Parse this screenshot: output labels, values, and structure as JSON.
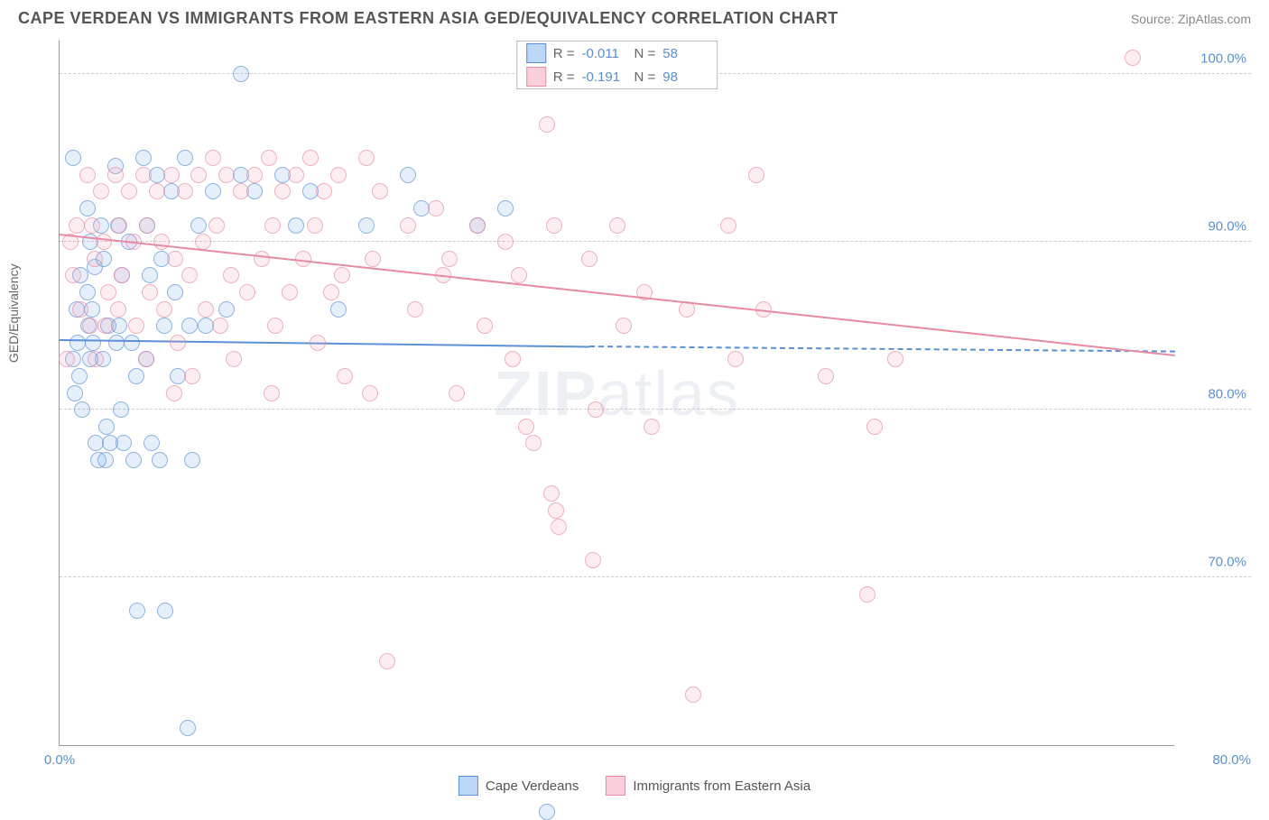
{
  "header": {
    "title": "CAPE VERDEAN VS IMMIGRANTS FROM EASTERN ASIA GED/EQUIVALENCY CORRELATION CHART",
    "source": "Source: ZipAtlas.com"
  },
  "watermark": {
    "bold": "ZIP",
    "rest": "atlas"
  },
  "chart": {
    "type": "scatter",
    "y_axis_label": "GED/Equivalency",
    "xlim": [
      0,
      80
    ],
    "ylim": [
      60,
      102
    ],
    "y_ticks": [
      {
        "v": 70,
        "label": "70.0%"
      },
      {
        "v": 80,
        "label": "80.0%"
      },
      {
        "v": 90,
        "label": "90.0%"
      },
      {
        "v": 100,
        "label": "100.0%"
      }
    ],
    "x_ticks": [
      {
        "v": 0,
        "label": "0.0%"
      },
      {
        "v": 80,
        "label": "80.0%"
      }
    ],
    "grid_color": "#cccccc",
    "axis_color": "#999999",
    "background_color": "#ffffff",
    "label_color": "#666666",
    "tick_label_color": "#5b8fd6",
    "marker_radius": 9,
    "marker_border_width": 1.2,
    "marker_fill_opacity": 0.28,
    "series": [
      {
        "name": "Cape Verdeans",
        "color": "#6fa8e8",
        "border_color": "#5b8fd6",
        "stats": {
          "R": "-0.011",
          "N": "58"
        },
        "trend": {
          "x1": 0,
          "y1": 84.2,
          "x2": 38,
          "y2": 83.8,
          "dash_to_x": 80,
          "dash_to_y": 83.5
        },
        "points": [
          [
            1,
            95
          ],
          [
            1.5,
            88
          ],
          [
            1.2,
            86
          ],
          [
            1.3,
            84
          ],
          [
            1,
            83
          ],
          [
            1.4,
            82
          ],
          [
            1.1,
            81
          ],
          [
            1.6,
            80
          ],
          [
            2,
            92
          ],
          [
            2.2,
            90
          ],
          [
            2.5,
            88.5
          ],
          [
            2,
            87
          ],
          [
            2.3,
            86
          ],
          [
            2.1,
            85
          ],
          [
            2.4,
            84
          ],
          [
            2.2,
            83
          ],
          [
            2.6,
            78
          ],
          [
            2.8,
            77
          ],
          [
            3,
            91
          ],
          [
            3.2,
            89
          ],
          [
            3.5,
            85
          ],
          [
            3.1,
            83
          ],
          [
            3.4,
            79
          ],
          [
            3.3,
            77
          ],
          [
            3.6,
            78
          ],
          [
            4,
            94.5
          ],
          [
            4.2,
            91
          ],
          [
            4.5,
            88
          ],
          [
            4.3,
            85
          ],
          [
            4.1,
            84
          ],
          [
            4.4,
            80
          ],
          [
            4.6,
            78
          ],
          [
            5,
            90
          ],
          [
            5.2,
            84
          ],
          [
            5.5,
            82
          ],
          [
            5.3,
            77
          ],
          [
            5.6,
            68
          ],
          [
            6,
            95
          ],
          [
            6.3,
            91
          ],
          [
            6.5,
            88
          ],
          [
            6.2,
            83
          ],
          [
            6.6,
            78
          ],
          [
            7,
            94
          ],
          [
            7.3,
            89
          ],
          [
            7.5,
            85
          ],
          [
            7.2,
            77
          ],
          [
            7.6,
            68
          ],
          [
            8,
            93
          ],
          [
            8.3,
            87
          ],
          [
            8.5,
            82
          ],
          [
            9,
            95
          ],
          [
            9.3,
            85
          ],
          [
            9.5,
            77
          ],
          [
            9.2,
            61
          ],
          [
            10,
            91
          ],
          [
            10.5,
            85
          ],
          [
            11,
            93
          ],
          [
            12,
            86
          ],
          [
            13,
            100
          ],
          [
            13,
            94
          ],
          [
            14,
            93
          ],
          [
            16,
            94
          ],
          [
            17,
            91
          ],
          [
            18,
            93
          ],
          [
            20,
            86
          ],
          [
            22,
            91
          ],
          [
            25,
            94
          ],
          [
            26,
            92
          ],
          [
            30,
            91
          ],
          [
            32,
            92
          ],
          [
            35,
            56
          ]
        ]
      },
      {
        "name": "Immigrants from Eastern Asia",
        "color": "#f5a3b8",
        "border_color": "#e88ba3",
        "stats": {
          "R": "-0.191",
          "N": "98"
        },
        "trend": {
          "x1": 0,
          "y1": 90.5,
          "x2": 80,
          "y2": 83.3
        },
        "points": [
          [
            0.5,
            83
          ],
          [
            0.8,
            90
          ],
          [
            1,
            88
          ],
          [
            1.2,
            91
          ],
          [
            1.5,
            86
          ],
          [
            2,
            94
          ],
          [
            2.3,
            91
          ],
          [
            2.5,
            89
          ],
          [
            2.2,
            85
          ],
          [
            2.6,
            83
          ],
          [
            3,
            93
          ],
          [
            3.2,
            90
          ],
          [
            3.5,
            87
          ],
          [
            3.3,
            85
          ],
          [
            4,
            94
          ],
          [
            4.3,
            91
          ],
          [
            4.5,
            88
          ],
          [
            4.2,
            86
          ],
          [
            5,
            93
          ],
          [
            5.3,
            90
          ],
          [
            5.5,
            85
          ],
          [
            6,
            94
          ],
          [
            6.3,
            91
          ],
          [
            6.5,
            87
          ],
          [
            6.2,
            83
          ],
          [
            7,
            93
          ],
          [
            7.3,
            90
          ],
          [
            7.5,
            86
          ],
          [
            8,
            94
          ],
          [
            8.3,
            89
          ],
          [
            8.5,
            84
          ],
          [
            8.2,
            81
          ],
          [
            9,
            93
          ],
          [
            9.3,
            88
          ],
          [
            9.5,
            82
          ],
          [
            10,
            94
          ],
          [
            10.3,
            90
          ],
          [
            10.5,
            86
          ],
          [
            11,
            95
          ],
          [
            11.3,
            91
          ],
          [
            11.5,
            85
          ],
          [
            12,
            94
          ],
          [
            12.3,
            88
          ],
          [
            12.5,
            83
          ],
          [
            13,
            93
          ],
          [
            13.5,
            87
          ],
          [
            14,
            94
          ],
          [
            14.5,
            89
          ],
          [
            15,
            95
          ],
          [
            15.3,
            91
          ],
          [
            15.5,
            85
          ],
          [
            15.2,
            81
          ],
          [
            16,
            93
          ],
          [
            16.5,
            87
          ],
          [
            17,
            94
          ],
          [
            17.5,
            89
          ],
          [
            18,
            95
          ],
          [
            18.3,
            91
          ],
          [
            18.5,
            84
          ],
          [
            19,
            93
          ],
          [
            19.5,
            87
          ],
          [
            20,
            94
          ],
          [
            20.3,
            88
          ],
          [
            20.5,
            82
          ],
          [
            22,
            95
          ],
          [
            22.5,
            89
          ],
          [
            22.3,
            81
          ],
          [
            23,
            93
          ],
          [
            23.5,
            65
          ],
          [
            25,
            91
          ],
          [
            25.5,
            86
          ],
          [
            27,
            92
          ],
          [
            27.5,
            88
          ],
          [
            28,
            89
          ],
          [
            28.5,
            81
          ],
          [
            30,
            91
          ],
          [
            30.5,
            85
          ],
          [
            32,
            90
          ],
          [
            32.5,
            83
          ],
          [
            33,
            88
          ],
          [
            33.5,
            79
          ],
          [
            34,
            78
          ],
          [
            35,
            97
          ],
          [
            35.5,
            91
          ],
          [
            35.3,
            75
          ],
          [
            35.6,
            74
          ],
          [
            35.8,
            73
          ],
          [
            38,
            89
          ],
          [
            38.5,
            80
          ],
          [
            38.3,
            71
          ],
          [
            40,
            91
          ],
          [
            40.5,
            85
          ],
          [
            42,
            87
          ],
          [
            42.5,
            79
          ],
          [
            45,
            86
          ],
          [
            45.5,
            63
          ],
          [
            48,
            91
          ],
          [
            48.5,
            83
          ],
          [
            50,
            94
          ],
          [
            50.5,
            86
          ],
          [
            55,
            82
          ],
          [
            58,
            69
          ],
          [
            58.5,
            79
          ],
          [
            60,
            83
          ],
          [
            77,
            101
          ]
        ]
      }
    ],
    "bottom_legend": [
      {
        "swatch_fill": "#bcd6f5",
        "swatch_border": "#5b8fd6",
        "label": "Cape Verdeans"
      },
      {
        "swatch_fill": "#f9cfd9",
        "swatch_border": "#e88ba3",
        "label": "Immigrants from Eastern Asia"
      }
    ],
    "stats_legend_swatches": [
      {
        "fill": "#bcd6f5",
        "border": "#5b8fd6"
      },
      {
        "fill": "#f9cfd9",
        "border": "#e88ba3"
      }
    ]
  }
}
